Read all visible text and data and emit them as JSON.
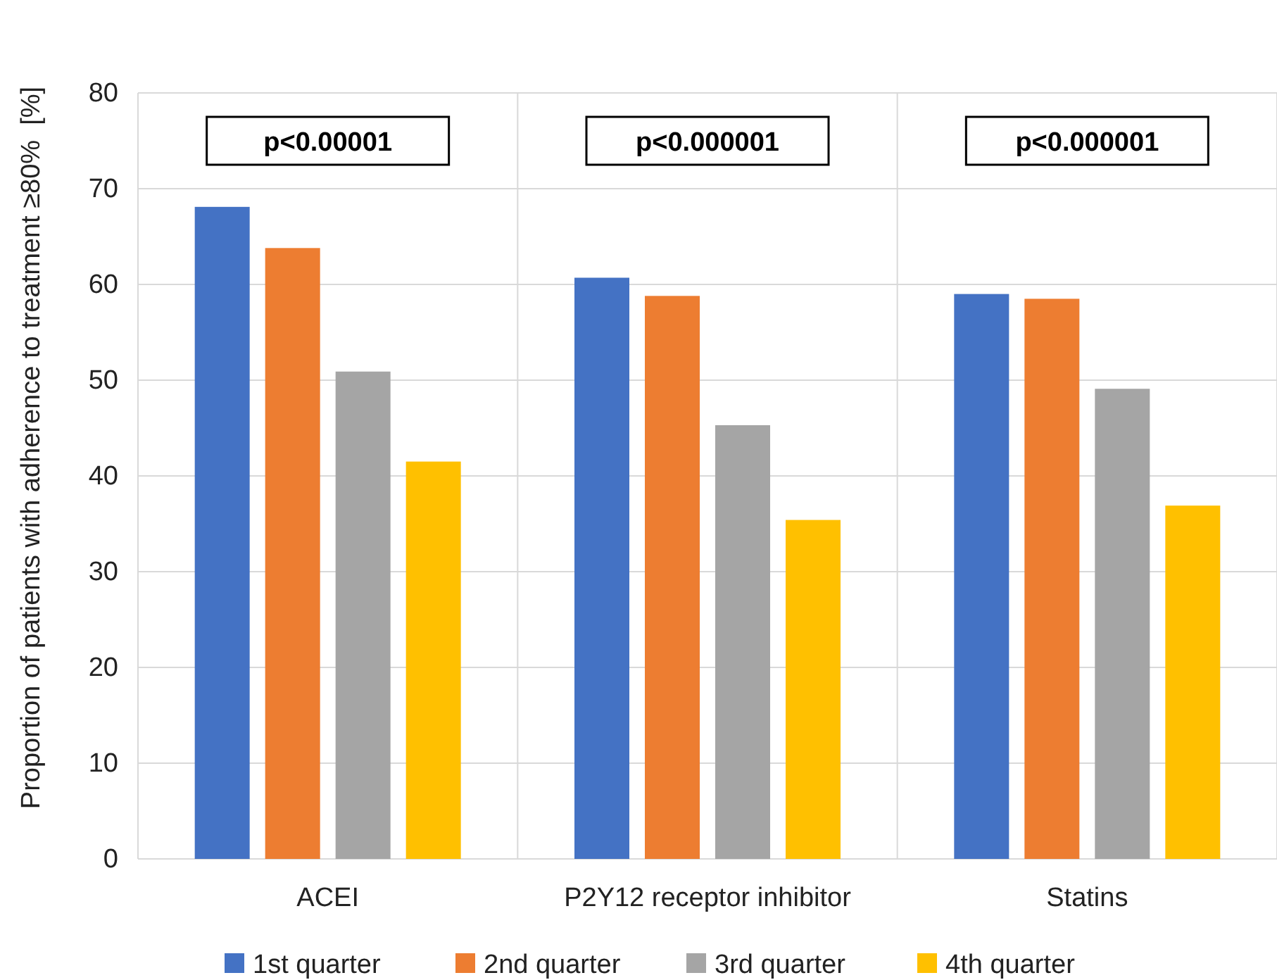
{
  "chart_data": {
    "type": "bar",
    "ylabel": "Proportion of patients with adherence to treatment ≥80%  [%]",
    "categories": [
      "ACEI",
      "P2Y12 receptor inhibitor",
      "Statins"
    ],
    "series": [
      {
        "name": "1st quarter",
        "color": "#4472c4",
        "values": [
          68.1,
          60.7,
          59.0
        ]
      },
      {
        "name": "2nd quarter",
        "color": "#ed7d31",
        "values": [
          63.8,
          58.8,
          58.5
        ]
      },
      {
        "name": "3rd quarter",
        "color": "#a5a5a5",
        "values": [
          50.9,
          45.3,
          49.1
        ]
      },
      {
        "name": "4th quarter",
        "color": "#ffc000",
        "values": [
          41.5,
          35.4,
          36.9
        ]
      }
    ],
    "ylim": [
      0,
      80
    ],
    "yticks": [
      0,
      10,
      20,
      30,
      40,
      50,
      60,
      70,
      80
    ],
    "grid": true,
    "legend": "bottom",
    "annotations": [
      "p<0.00001",
      "p<0.000001",
      "p<0.000001"
    ]
  }
}
